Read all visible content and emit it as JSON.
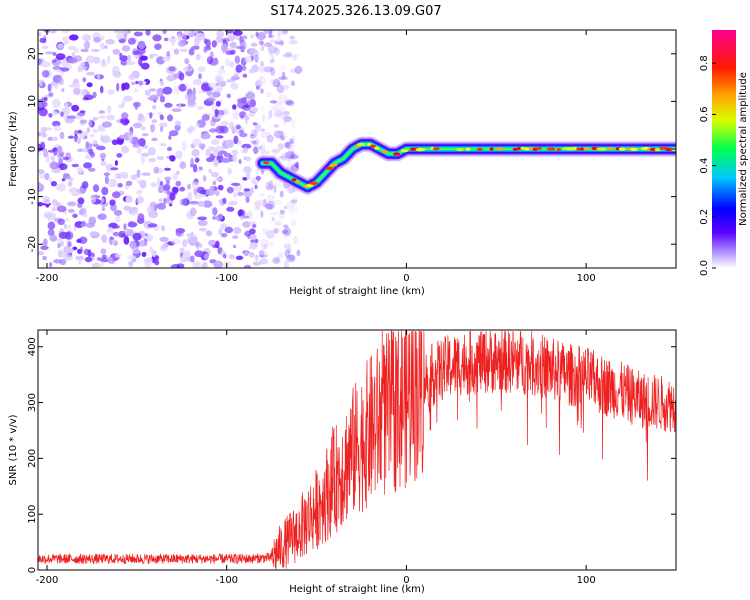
{
  "title": "S174.2025.326.13.09.G07",
  "chart_data": [
    {
      "type": "heatmap",
      "name": "spectrogram",
      "xlabel": "Height of straight line (km)",
      "ylabel": "Frequency (Hz)",
      "xlim": [
        -205,
        150
      ],
      "ylim": [
        -25,
        25
      ],
      "xticks": [
        -200,
        -100,
        0,
        100
      ],
      "yticks": [
        -20,
        -10,
        0,
        10,
        20
      ],
      "track": {
        "x": [
          -80,
          -75,
          -70,
          -65,
          -60,
          -55,
          -50,
          -45,
          -40,
          -35,
          -30,
          -25,
          -20,
          -15,
          -10,
          -5,
          0,
          10,
          20,
          30,
          40,
          50,
          60,
          70,
          80,
          90,
          100,
          110,
          120,
          130,
          140,
          150
        ],
        "y": [
          -3,
          -3,
          -5,
          -6,
          -7,
          -8,
          -7,
          -5,
          -3,
          -2,
          0,
          1,
          1,
          0,
          -1,
          -1,
          0,
          0,
          0,
          0,
          0,
          0,
          0,
          0,
          0,
          0,
          0,
          0,
          0,
          0,
          0,
          0
        ]
      },
      "noise_region": {
        "x_from": -205,
        "x_to": -70
      },
      "colorbar": {
        "label": "Normalized spectral amplitude",
        "ticks": [
          "0.0",
          "0.2",
          "0.4",
          "0.6",
          "0.8"
        ],
        "stops": [
          "#ffffff",
          "#7a00ff",
          "#0000ff",
          "#00c8ff",
          "#00ff50",
          "#ffff00",
          "#ff7a00",
          "#ff0000",
          "#ff0090"
        ]
      }
    },
    {
      "type": "line",
      "name": "snr",
      "xlabel": "Height of straight line (km)",
      "ylabel": "SNR (10 * v/v)",
      "xlim": [
        -205,
        150
      ],
      "ylim": [
        0,
        430
      ],
      "xticks": [
        -200,
        -100,
        0,
        100
      ],
      "yticks": [
        0,
        100,
        200,
        300,
        400
      ],
      "color": "#ee2020",
      "envelope": {
        "x": [
          -205,
          -180,
          -150,
          -120,
          -90,
          -75,
          -70,
          -60,
          -50,
          -40,
          -30,
          -20,
          -10,
          0,
          10,
          20,
          30,
          40,
          50,
          60,
          70,
          80,
          90,
          100,
          110,
          120,
          130,
          140,
          150
        ],
        "y": [
          20,
          20,
          20,
          20,
          20,
          22,
          40,
          70,
          110,
          160,
          210,
          250,
          280,
          310,
          340,
          360,
          370,
          375,
          375,
          375,
          370,
          360,
          350,
          345,
          330,
          320,
          305,
          300,
          295
        ]
      }
    }
  ]
}
